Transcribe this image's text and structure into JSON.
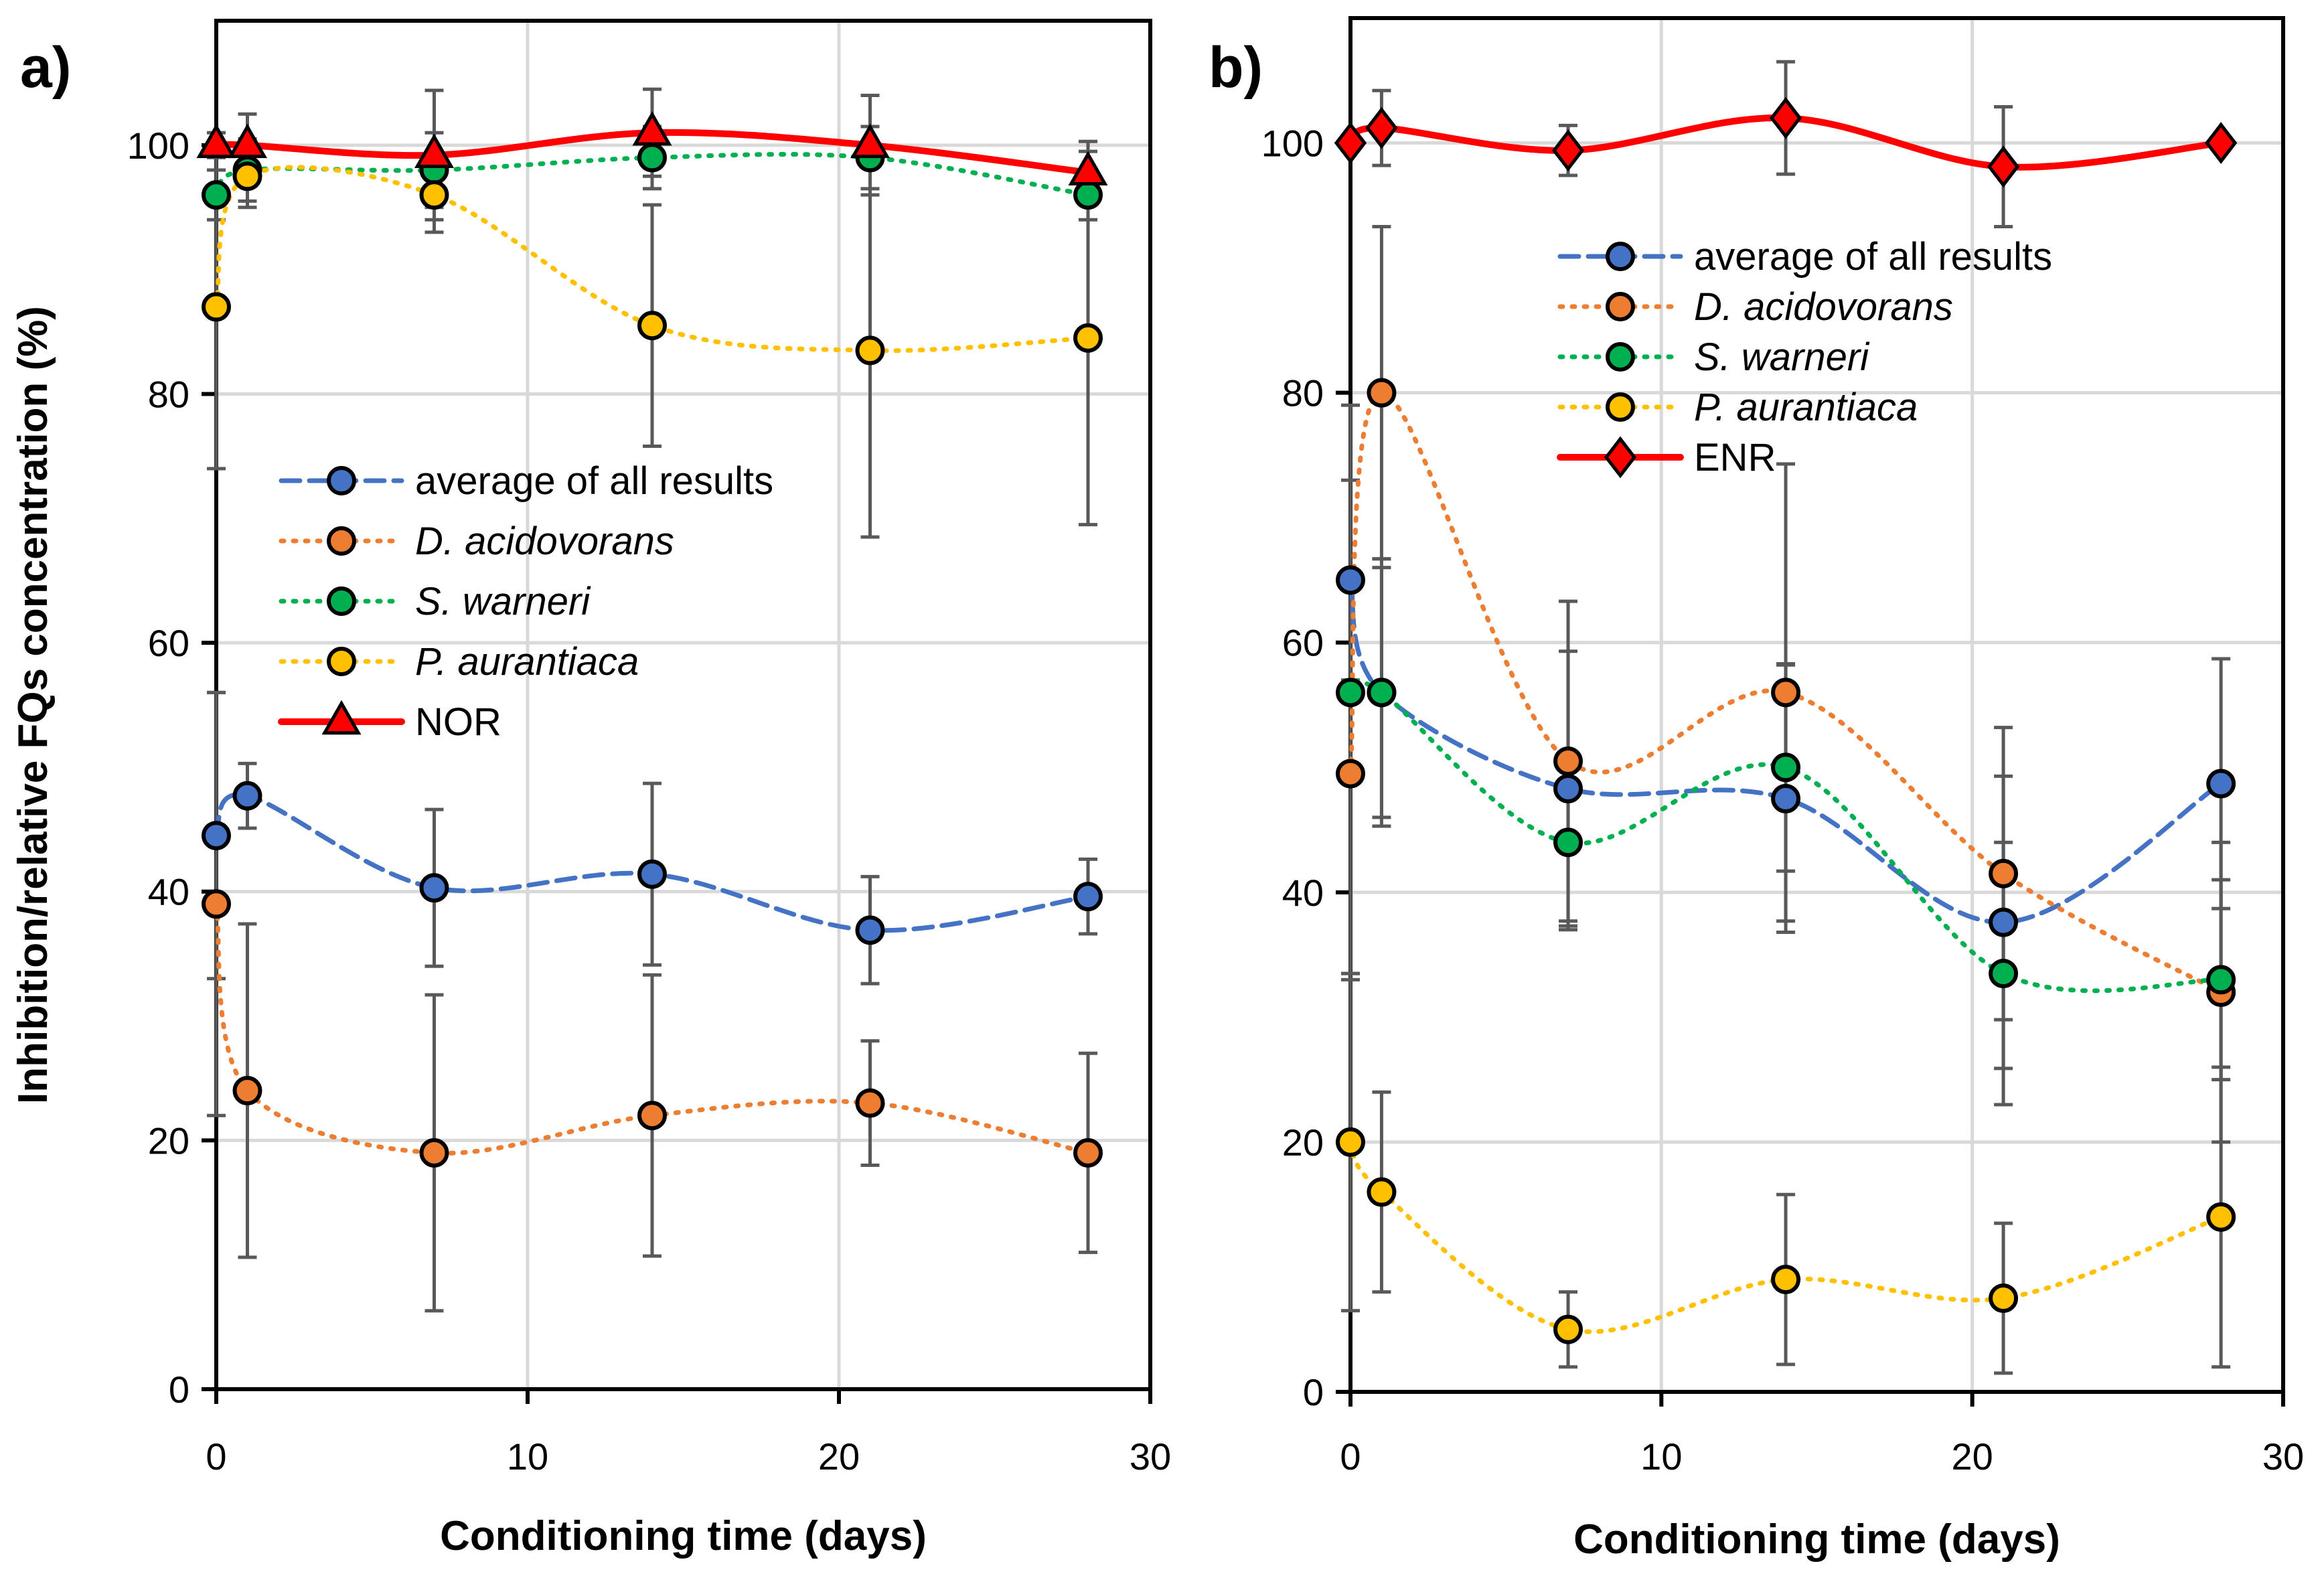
{
  "chart_data": [
    {
      "type": "line",
      "panel_label": "a)",
      "xlabel": "Conditioning time (days)",
      "ylabel": "Inhibition/relative FQs concentration (%)",
      "xlim": [
        0,
        30
      ],
      "ylim": [
        0,
        110
      ],
      "xticks": [
        0,
        10,
        20,
        30
      ],
      "yticks": [
        0,
        20,
        40,
        60,
        80,
        100
      ],
      "grid": true,
      "legend_position": "center-left",
      "x": [
        0,
        1,
        7,
        14,
        21,
        28
      ],
      "series": [
        {
          "name": "average of all results",
          "italic": false,
          "color": "#4472C4",
          "style": "dashed",
          "marker": "circle",
          "values": [
            44.5,
            47.7,
            40.3,
            41.4,
            36.9,
            39.6
          ],
          "errors": [
            11.5,
            2.6,
            6.3,
            7.3,
            4.3,
            3.0
          ]
        },
        {
          "name": "D. acidovorans",
          "italic": true,
          "color": "#ED7D31",
          "style": "dotted",
          "marker": "circle",
          "values": [
            39,
            24,
            19,
            22,
            23,
            19
          ],
          "errors": [
            17,
            13.4,
            12.7,
            11.3,
            5,
            8
          ]
        },
        {
          "name": "S. warneri",
          "italic": true,
          "color": "#00B050",
          "style": "dotted",
          "marker": "circle",
          "values": [
            96,
            98,
            98,
            99,
            99,
            96
          ],
          "errors": [
            2,
            2.5,
            3,
            2.5,
            2.5,
            2
          ]
        },
        {
          "name": "P. aurantiaca",
          "italic": true,
          "color": "#FFC000",
          "style": "dotted",
          "marker": "circle",
          "values": [
            87,
            97.5,
            96,
            85.5,
            83.5,
            84.5
          ],
          "errors": [
            13,
            2.5,
            3,
            9.7,
            15,
            15
          ]
        },
        {
          "name": "NOR",
          "italic": false,
          "color": "#FF0000",
          "style": "solid",
          "marker": "triangle",
          "values": [
            100,
            100,
            99.2,
            101,
            100,
            97.8
          ],
          "errors": [
            1,
            2.5,
            5.2,
            3.5,
            4,
            2.5
          ]
        }
      ]
    },
    {
      "type": "line",
      "panel_label": "b)",
      "xlabel": "Conditioning time (days)",
      "ylabel": "",
      "xlim": [
        0,
        30
      ],
      "ylim": [
        0,
        110
      ],
      "xticks": [
        0,
        10,
        20,
        30
      ],
      "yticks": [
        0,
        20,
        40,
        60,
        80,
        100
      ],
      "grid": true,
      "legend_position": "top-center",
      "x": [
        0,
        1,
        7,
        14,
        21,
        28
      ],
      "series": [
        {
          "name": "average of all results",
          "italic": false,
          "color": "#4472C4",
          "style": "dashed",
          "marker": "circle",
          "values": [
            65,
            56,
            48.3,
            47.5,
            37.6,
            48.7
          ],
          "errors": [
            8,
            10.7,
            11,
            10.7,
            11.7,
            10
          ]
        },
        {
          "name": "D. acidovorans",
          "italic": true,
          "color": "#ED7D31",
          "style": "dotted",
          "marker": "circle",
          "values": [
            49.5,
            80,
            50.5,
            56,
            41.5,
            32
          ],
          "errors": [
            16,
            13.3,
            12.8,
            18.3,
            11.7,
            12
          ]
        },
        {
          "name": "S. warneri",
          "italic": true,
          "color": "#00B050",
          "style": "dotted",
          "marker": "circle",
          "values": [
            56,
            56,
            44,
            50,
            33.5,
            33
          ],
          "errors": [
            23,
            10,
            7,
            8.3,
            10.5,
            8
          ]
        },
        {
          "name": "P. aurantiaca",
          "italic": true,
          "color": "#FFC000",
          "style": "dotted",
          "marker": "circle",
          "values": [
            20,
            16,
            5,
            9,
            7.5,
            14
          ],
          "errors": [
            13.5,
            8,
            3,
            6.8,
            6,
            12
          ]
        },
        {
          "name": "ENR",
          "italic": false,
          "color": "#FF0000",
          "style": "solid",
          "marker": "diamond",
          "values": [
            100,
            101.2,
            99.4,
            102,
            98.1,
            100
          ],
          "errors": [
            0.5,
            3,
            2,
            4.5,
            4.8,
            0
          ]
        }
      ]
    }
  ]
}
